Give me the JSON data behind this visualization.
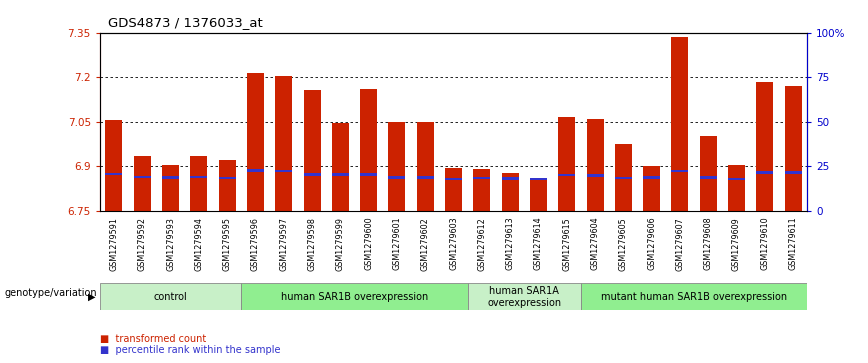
{
  "title": "GDS4873 / 1376033_at",
  "samples": [
    "GSM1279591",
    "GSM1279592",
    "GSM1279593",
    "GSM1279594",
    "GSM1279595",
    "GSM1279596",
    "GSM1279597",
    "GSM1279598",
    "GSM1279599",
    "GSM1279600",
    "GSM1279601",
    "GSM1279602",
    "GSM1279603",
    "GSM1279612",
    "GSM1279613",
    "GSM1279614",
    "GSM1279615",
    "GSM1279604",
    "GSM1279605",
    "GSM1279606",
    "GSM1279607",
    "GSM1279608",
    "GSM1279609",
    "GSM1279610",
    "GSM1279611"
  ],
  "bar_values": [
    7.055,
    6.935,
    6.905,
    6.935,
    6.92,
    7.215,
    7.205,
    7.155,
    7.045,
    7.16,
    7.05,
    7.05,
    6.895,
    6.89,
    6.875,
    6.855,
    7.065,
    7.06,
    6.975,
    6.9,
    7.335,
    7.0,
    6.905,
    7.185,
    7.17
  ],
  "blue_values": [
    6.874,
    6.863,
    6.862,
    6.863,
    6.86,
    6.885,
    6.884,
    6.872,
    6.872,
    6.872,
    6.862,
    6.862,
    6.857,
    6.859,
    6.858,
    6.857,
    6.869,
    6.868,
    6.86,
    6.861,
    6.884,
    6.862,
    6.857,
    6.878,
    6.878
  ],
  "groups": [
    {
      "label": "control",
      "start": 0,
      "end": 5,
      "color": "#c8f0c8"
    },
    {
      "label": "human SAR1B overexpression",
      "start": 5,
      "end": 13,
      "color": "#90ee90"
    },
    {
      "label": "human SAR1A\noverexpression",
      "start": 13,
      "end": 17,
      "color": "#c8f0c8"
    },
    {
      "label": "mutant human SAR1B overexpression",
      "start": 17,
      "end": 25,
      "color": "#90ee90"
    }
  ],
  "ymin": 6.75,
  "ymax": 7.35,
  "yticks": [
    6.75,
    6.9,
    7.05,
    7.2,
    7.35
  ],
  "right_yticks": [
    0,
    25,
    50,
    75,
    100
  ],
  "right_ytick_labels": [
    "0",
    "25",
    "50",
    "75",
    "100%"
  ],
  "bar_color": "#cc2200",
  "blue_color": "#3333cc",
  "bg_color": "#ffffff",
  "plot_bg": "#ffffff",
  "ytick_color": "#cc2200",
  "right_ytick_color": "#0000cc",
  "dotted_yticks": [
    6.9,
    7.05,
    7.2
  ],
  "blue_bar_height": 0.008,
  "bar_width": 0.6
}
